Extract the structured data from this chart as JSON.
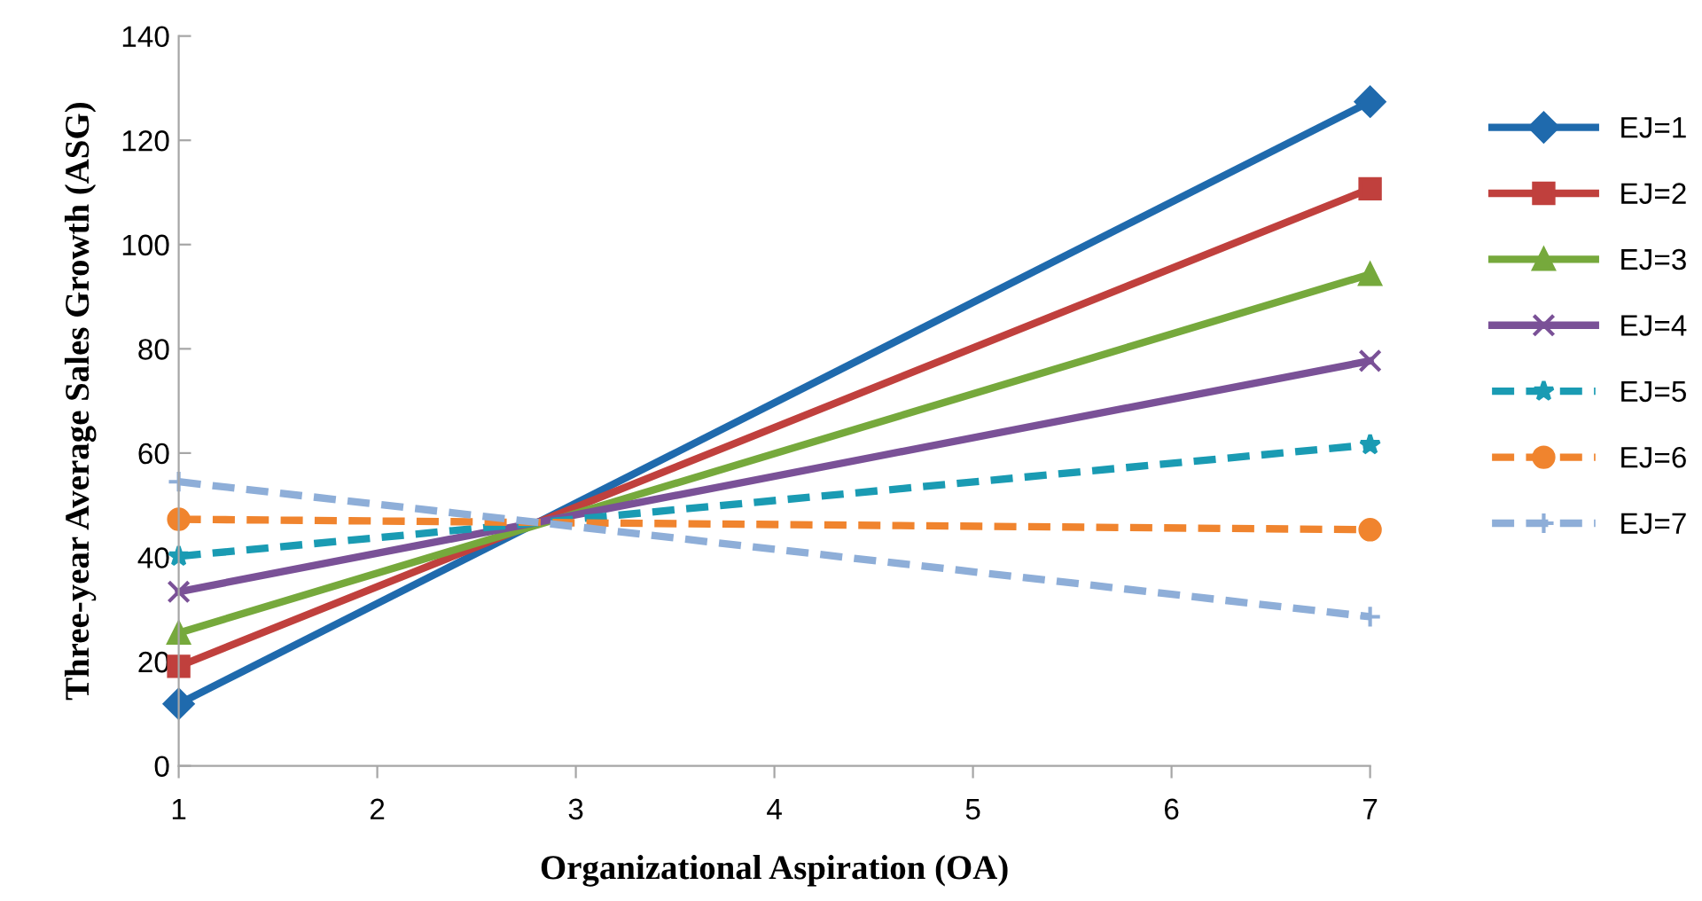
{
  "chart_data": {
    "type": "line",
    "xlabel": "Organizational Aspiration (OA)",
    "ylabel": "Three-year Average Sales Growth (ASG)",
    "x": [
      1,
      7
    ],
    "xlim": [
      1,
      7
    ],
    "xticks": [
      1,
      2,
      3,
      4,
      5,
      6,
      7
    ],
    "ylim": [
      0,
      140
    ],
    "yticks": [
      0,
      20,
      40,
      60,
      80,
      100,
      120,
      140
    ],
    "grid": false,
    "legend": "right",
    "series": [
      {
        "name": "EJ=1",
        "color": "#1f6aad",
        "values": [
          11.9,
          127.4
        ],
        "marker": "diamond",
        "line_style": "solid"
      },
      {
        "name": "EJ=2",
        "color": "#c0403d",
        "values": [
          19.1,
          110.7
        ],
        "marker": "square",
        "line_style": "solid"
      },
      {
        "name": "EJ=3",
        "color": "#76a93c",
        "values": [
          25.5,
          94.3
        ],
        "marker": "triangle",
        "line_style": "solid"
      },
      {
        "name": "EJ=4",
        "color": "#7a5197",
        "values": [
          33.4,
          77.7
        ],
        "marker": "cross",
        "line_style": "solid"
      },
      {
        "name": "EJ=5",
        "color": "#1a9bb3",
        "values": [
          40.2,
          61.6
        ],
        "marker": "star",
        "line_style": "dashed"
      },
      {
        "name": "EJ=6",
        "color": "#f0842e",
        "values": [
          47.3,
          45.3
        ],
        "marker": "circle",
        "line_style": "dashed"
      },
      {
        "name": "EJ=7",
        "color": "#8eaed8",
        "values": [
          54.5,
          28.6
        ],
        "marker": "plus",
        "line_style": "dashed"
      }
    ]
  }
}
